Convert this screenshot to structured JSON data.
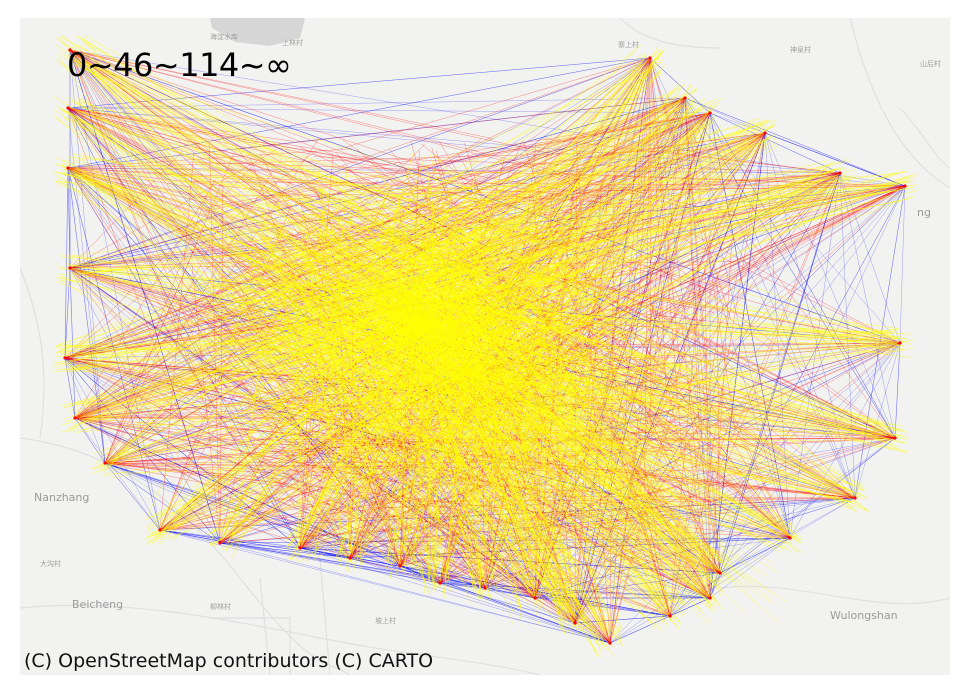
{
  "legend": {
    "text": "0~46~114~∞"
  },
  "attribution": "(C) OpenStreetMap contributors (C) CARTO",
  "places": {
    "nanzhang": "Nanzhang",
    "beicheng": "Beicheng",
    "wulongshan": "Wulongshan",
    "ng": "ng",
    "p1": "海淀水库",
    "p2": "上林村",
    "p3": "寨上村",
    "p4": "神泉村",
    "p5": "山后村",
    "p6": "大沟村",
    "p7": "柳林村",
    "p8": "坡上村"
  },
  "colors": {
    "low": "#0000ff",
    "mid": "#ff0000",
    "high": "#ffff00",
    "basemap": "#f2f2f0",
    "water": "#d6d6d6",
    "road": "#e2e2e2"
  }
}
